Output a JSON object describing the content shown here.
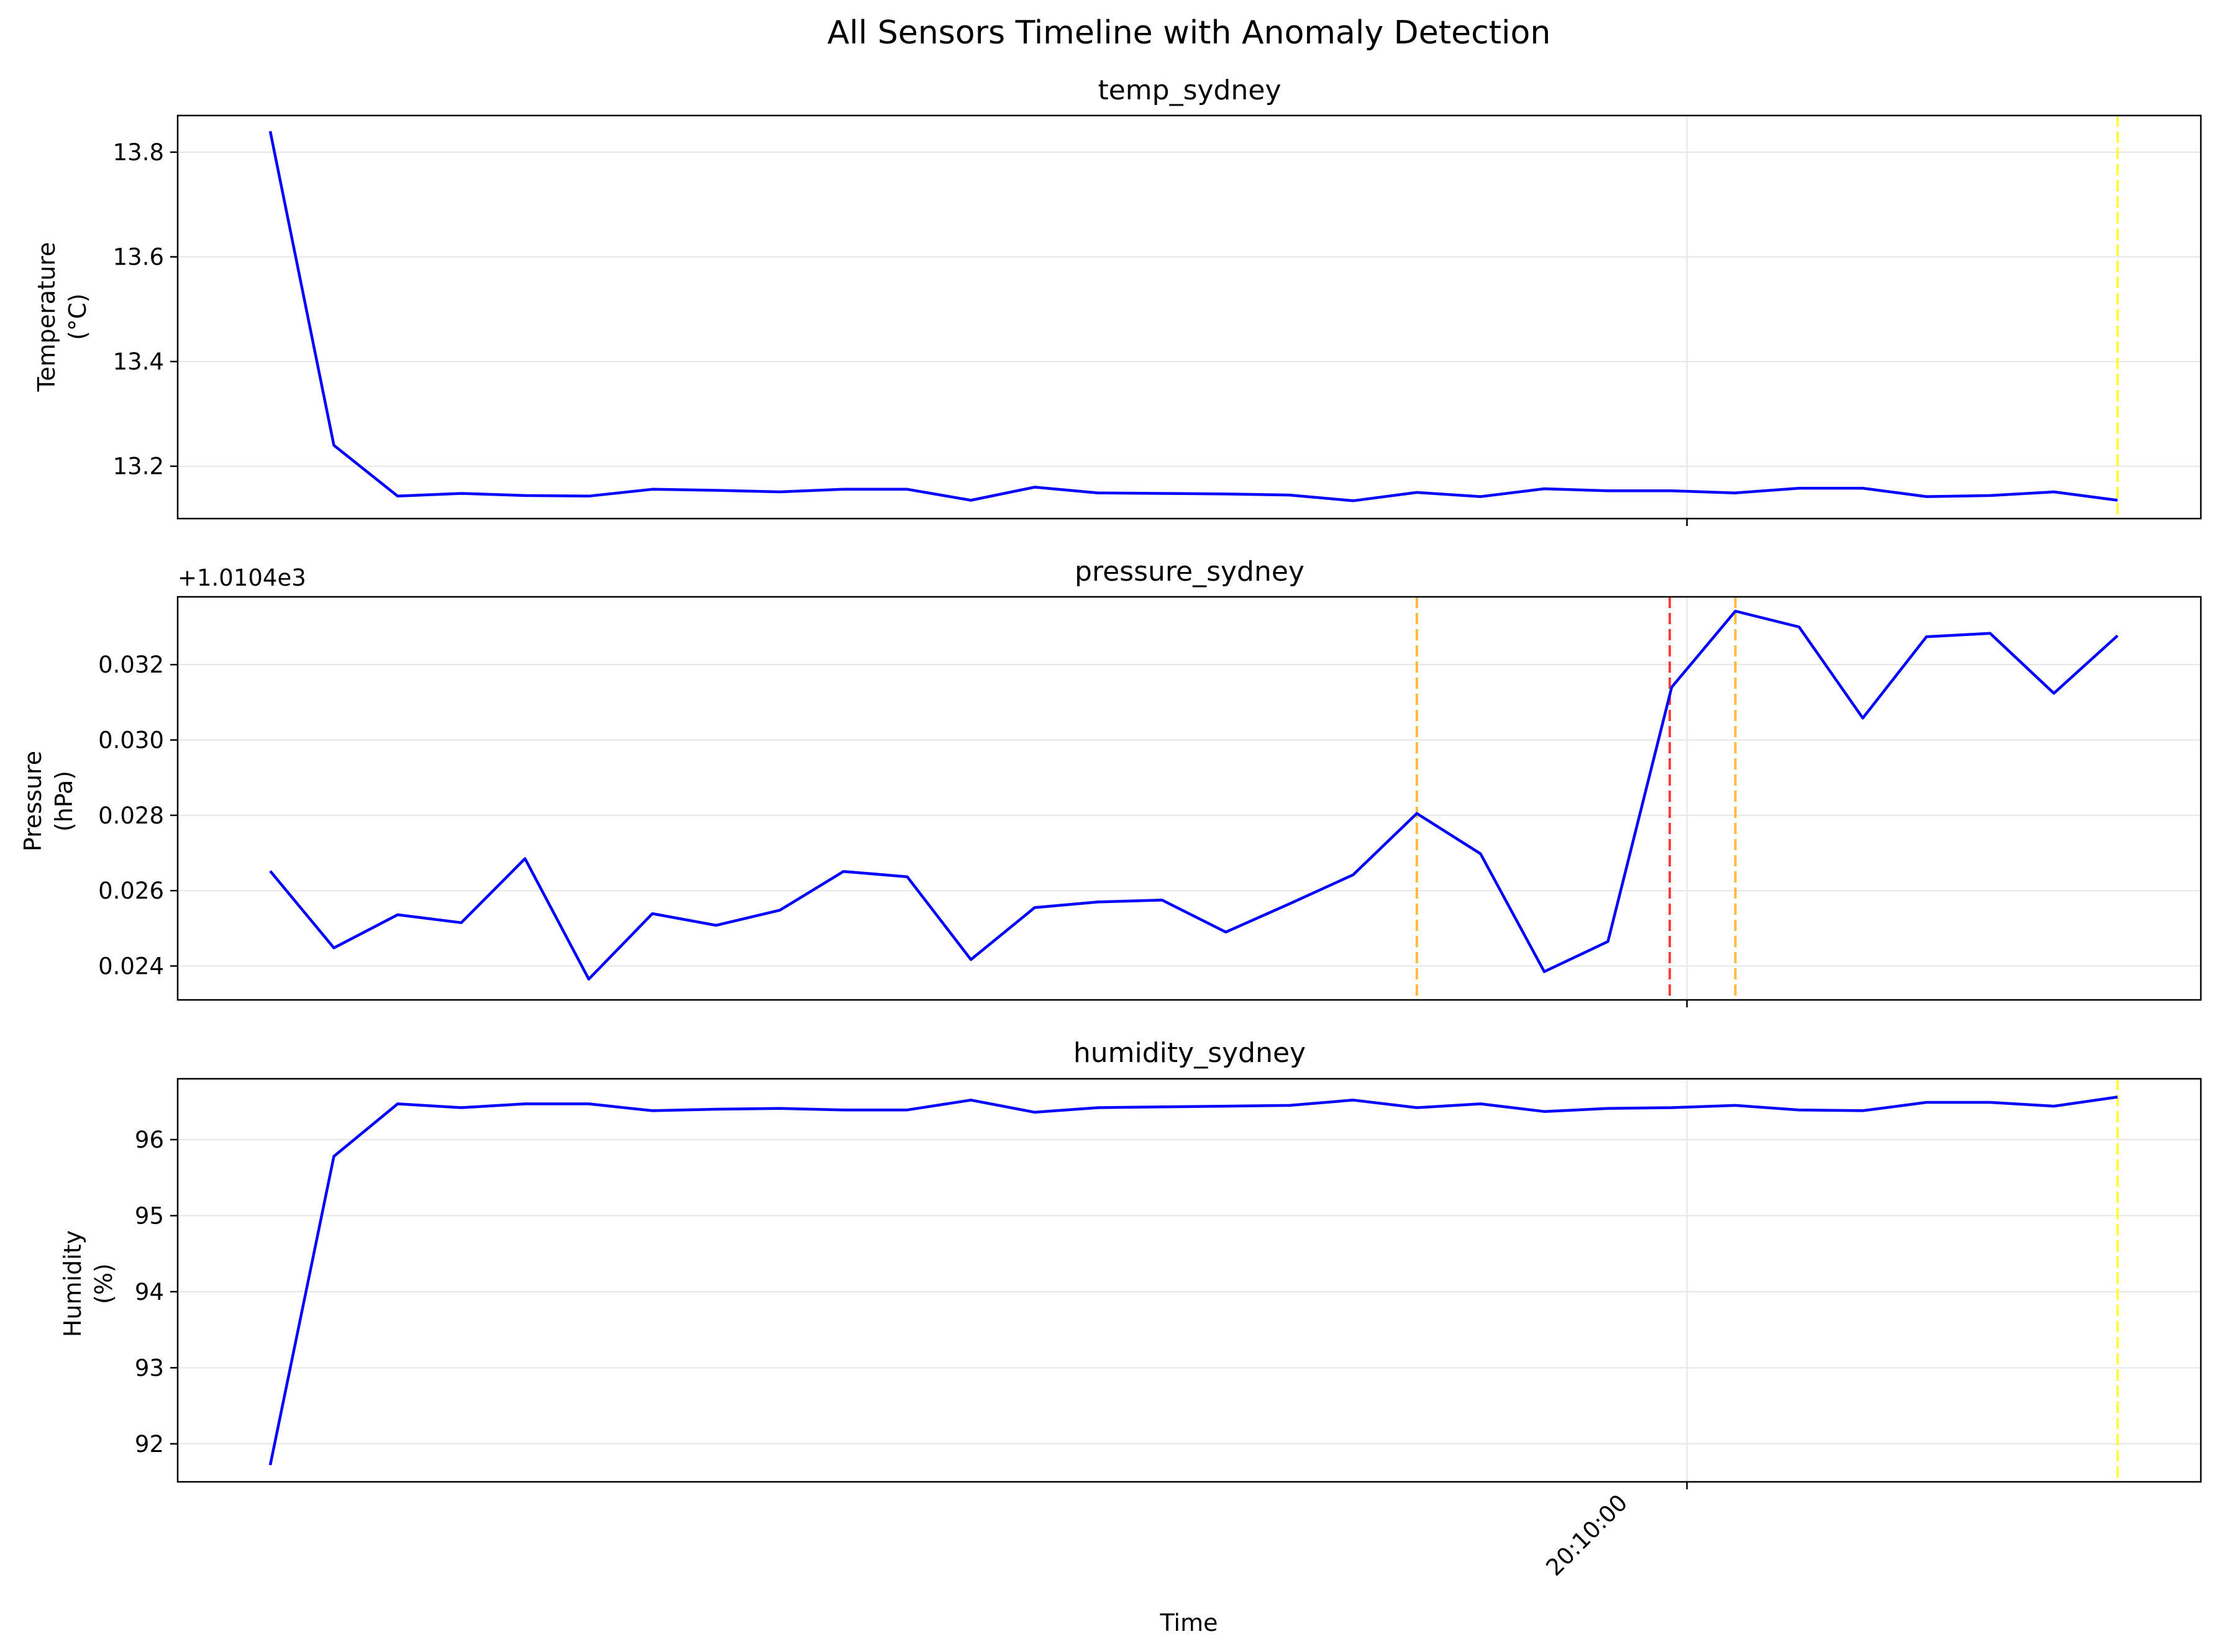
{
  "figure": {
    "title": "All Sensors Timeline with Anomaly Detection",
    "xlabel": "Time",
    "xtick_label": "20:10:00",
    "background": "#ffffff",
    "line_color": "#0000ff",
    "grid_color": "#e6e6e6"
  },
  "chart_data": [
    {
      "type": "line",
      "title": "temp_sydney",
      "ylabel_line1": "Temperature",
      "ylabel_line2": "(°C)",
      "ylim": [
        13.1,
        13.87
      ],
      "yticks": [
        13.2,
        13.4,
        13.6,
        13.8
      ],
      "ytick_labels": [
        "13.2",
        "13.4",
        "13.6",
        "13.8"
      ],
      "grid": true,
      "series": [
        {
          "color": "#0000ff",
          "values": [
            13.84,
            13.24,
            13.143,
            13.148,
            13.144,
            13.143,
            13.156,
            13.154,
            13.151,
            13.156,
            13.156,
            13.135,
            13.16,
            13.149,
            13.148,
            13.147,
            13.145,
            13.134,
            13.15,
            13.142,
            13.157,
            13.153,
            13.153,
            13.149,
            13.158,
            13.158,
            13.142,
            13.144,
            13.151,
            13.135
          ]
        }
      ],
      "anomaly_lines": [
        {
          "index": 29,
          "color": "#ffff00"
        }
      ]
    },
    {
      "type": "line",
      "title": "pressure_sydney",
      "ylabel_line1": "Pressure",
      "ylabel_line2": "(hPa)",
      "offset_text": "+1.0104e3",
      "ylim": [
        0.0231,
        0.0338
      ],
      "yticks": [
        0.024,
        0.026,
        0.028,
        0.03,
        0.032
      ],
      "ytick_labels": [
        "0.024",
        "0.026",
        "0.028",
        "0.030",
        "0.032"
      ],
      "grid": true,
      "series": [
        {
          "color": "#0000ff",
          "values": [
            0.02652,
            0.02448,
            0.02536,
            0.02515,
            0.02685,
            0.02365,
            0.02539,
            0.02508,
            0.02548,
            0.02651,
            0.02637,
            0.02417,
            0.02555,
            0.0257,
            0.02575,
            0.0249,
            0.02565,
            0.02642,
            0.02805,
            0.02698,
            0.02385,
            0.02465,
            0.0314,
            0.03342,
            0.033,
            0.03058,
            0.03274,
            0.03283,
            0.03124,
            0.03277
          ]
        }
      ],
      "anomaly_lines": [
        {
          "index": 18,
          "color": "#ffa500"
        },
        {
          "index": 21.97,
          "color": "#ff0000"
        },
        {
          "index": 23,
          "color": "#ffa500"
        }
      ]
    },
    {
      "type": "line",
      "title": "humidity_sydney",
      "ylabel_line1": "Humidity",
      "ylabel_line2": "(%)",
      "ylim": [
        91.5,
        96.8
      ],
      "yticks": [
        92,
        93,
        94,
        95,
        96
      ],
      "ytick_labels": [
        "92",
        "93",
        "94",
        "95",
        "96"
      ],
      "grid": true,
      "series": [
        {
          "color": "#0000ff",
          "values": [
            91.72,
            95.78,
            96.47,
            96.42,
            96.47,
            96.47,
            96.38,
            96.4,
            96.41,
            96.39,
            96.39,
            96.52,
            96.36,
            96.42,
            96.43,
            96.44,
            96.45,
            96.52,
            96.42,
            96.47,
            96.37,
            96.41,
            96.42,
            96.45,
            96.39,
            96.38,
            96.49,
            96.49,
            96.44,
            96.56
          ]
        }
      ],
      "anomaly_lines": [
        {
          "index": 29,
          "color": "#ffff00"
        }
      ]
    }
  ]
}
